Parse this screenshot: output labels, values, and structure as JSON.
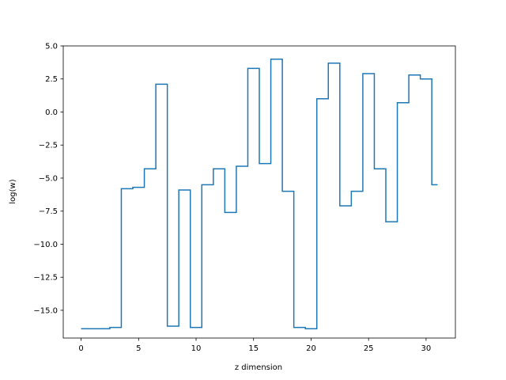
{
  "chart_data": {
    "type": "line",
    "drawstyle": "steps-mid",
    "title": "",
    "xlabel": "z dimension",
    "ylabel": "log(w)",
    "xlim": [
      -1.55,
      32.55
    ],
    "ylim": [
      -17.1,
      5.0
    ],
    "xticks": [
      0,
      5,
      10,
      15,
      20,
      25,
      30
    ],
    "xtick_labels": [
      "0",
      "5",
      "10",
      "15",
      "20",
      "25",
      "30"
    ],
    "yticks": [
      5.0,
      2.5,
      0.0,
      -2.5,
      -5.0,
      -7.5,
      -10.0,
      -12.5,
      -15.0
    ],
    "ytick_labels": [
      "5.0",
      "2.5",
      "0.0",
      "−2.5",
      "−5.0",
      "−7.5",
      "−10.0",
      "−12.5",
      "−15.0"
    ],
    "grid": false,
    "line_color": "#1f77b4",
    "series": [
      {
        "name": "",
        "x": [
          0,
          1,
          2,
          3,
          4,
          5,
          6,
          7,
          8,
          9,
          10,
          11,
          12,
          13,
          14,
          15,
          16,
          17,
          18,
          19,
          20,
          21,
          22,
          23,
          24,
          25,
          26,
          27,
          28,
          29,
          30,
          31
        ],
        "values": [
          -16.4,
          -16.4,
          -16.4,
          -16.3,
          -5.8,
          -5.7,
          -4.3,
          2.1,
          -16.2,
          -5.9,
          -16.3,
          -5.5,
          -4.3,
          -7.6,
          -4.1,
          3.3,
          -3.9,
          4.0,
          -6.0,
          -16.3,
          -16.4,
          1.0,
          3.7,
          -7.1,
          -6.0,
          2.9,
          -4.3,
          -8.3,
          0.7,
          2.8,
          2.5,
          -5.5
        ]
      }
    ]
  }
}
